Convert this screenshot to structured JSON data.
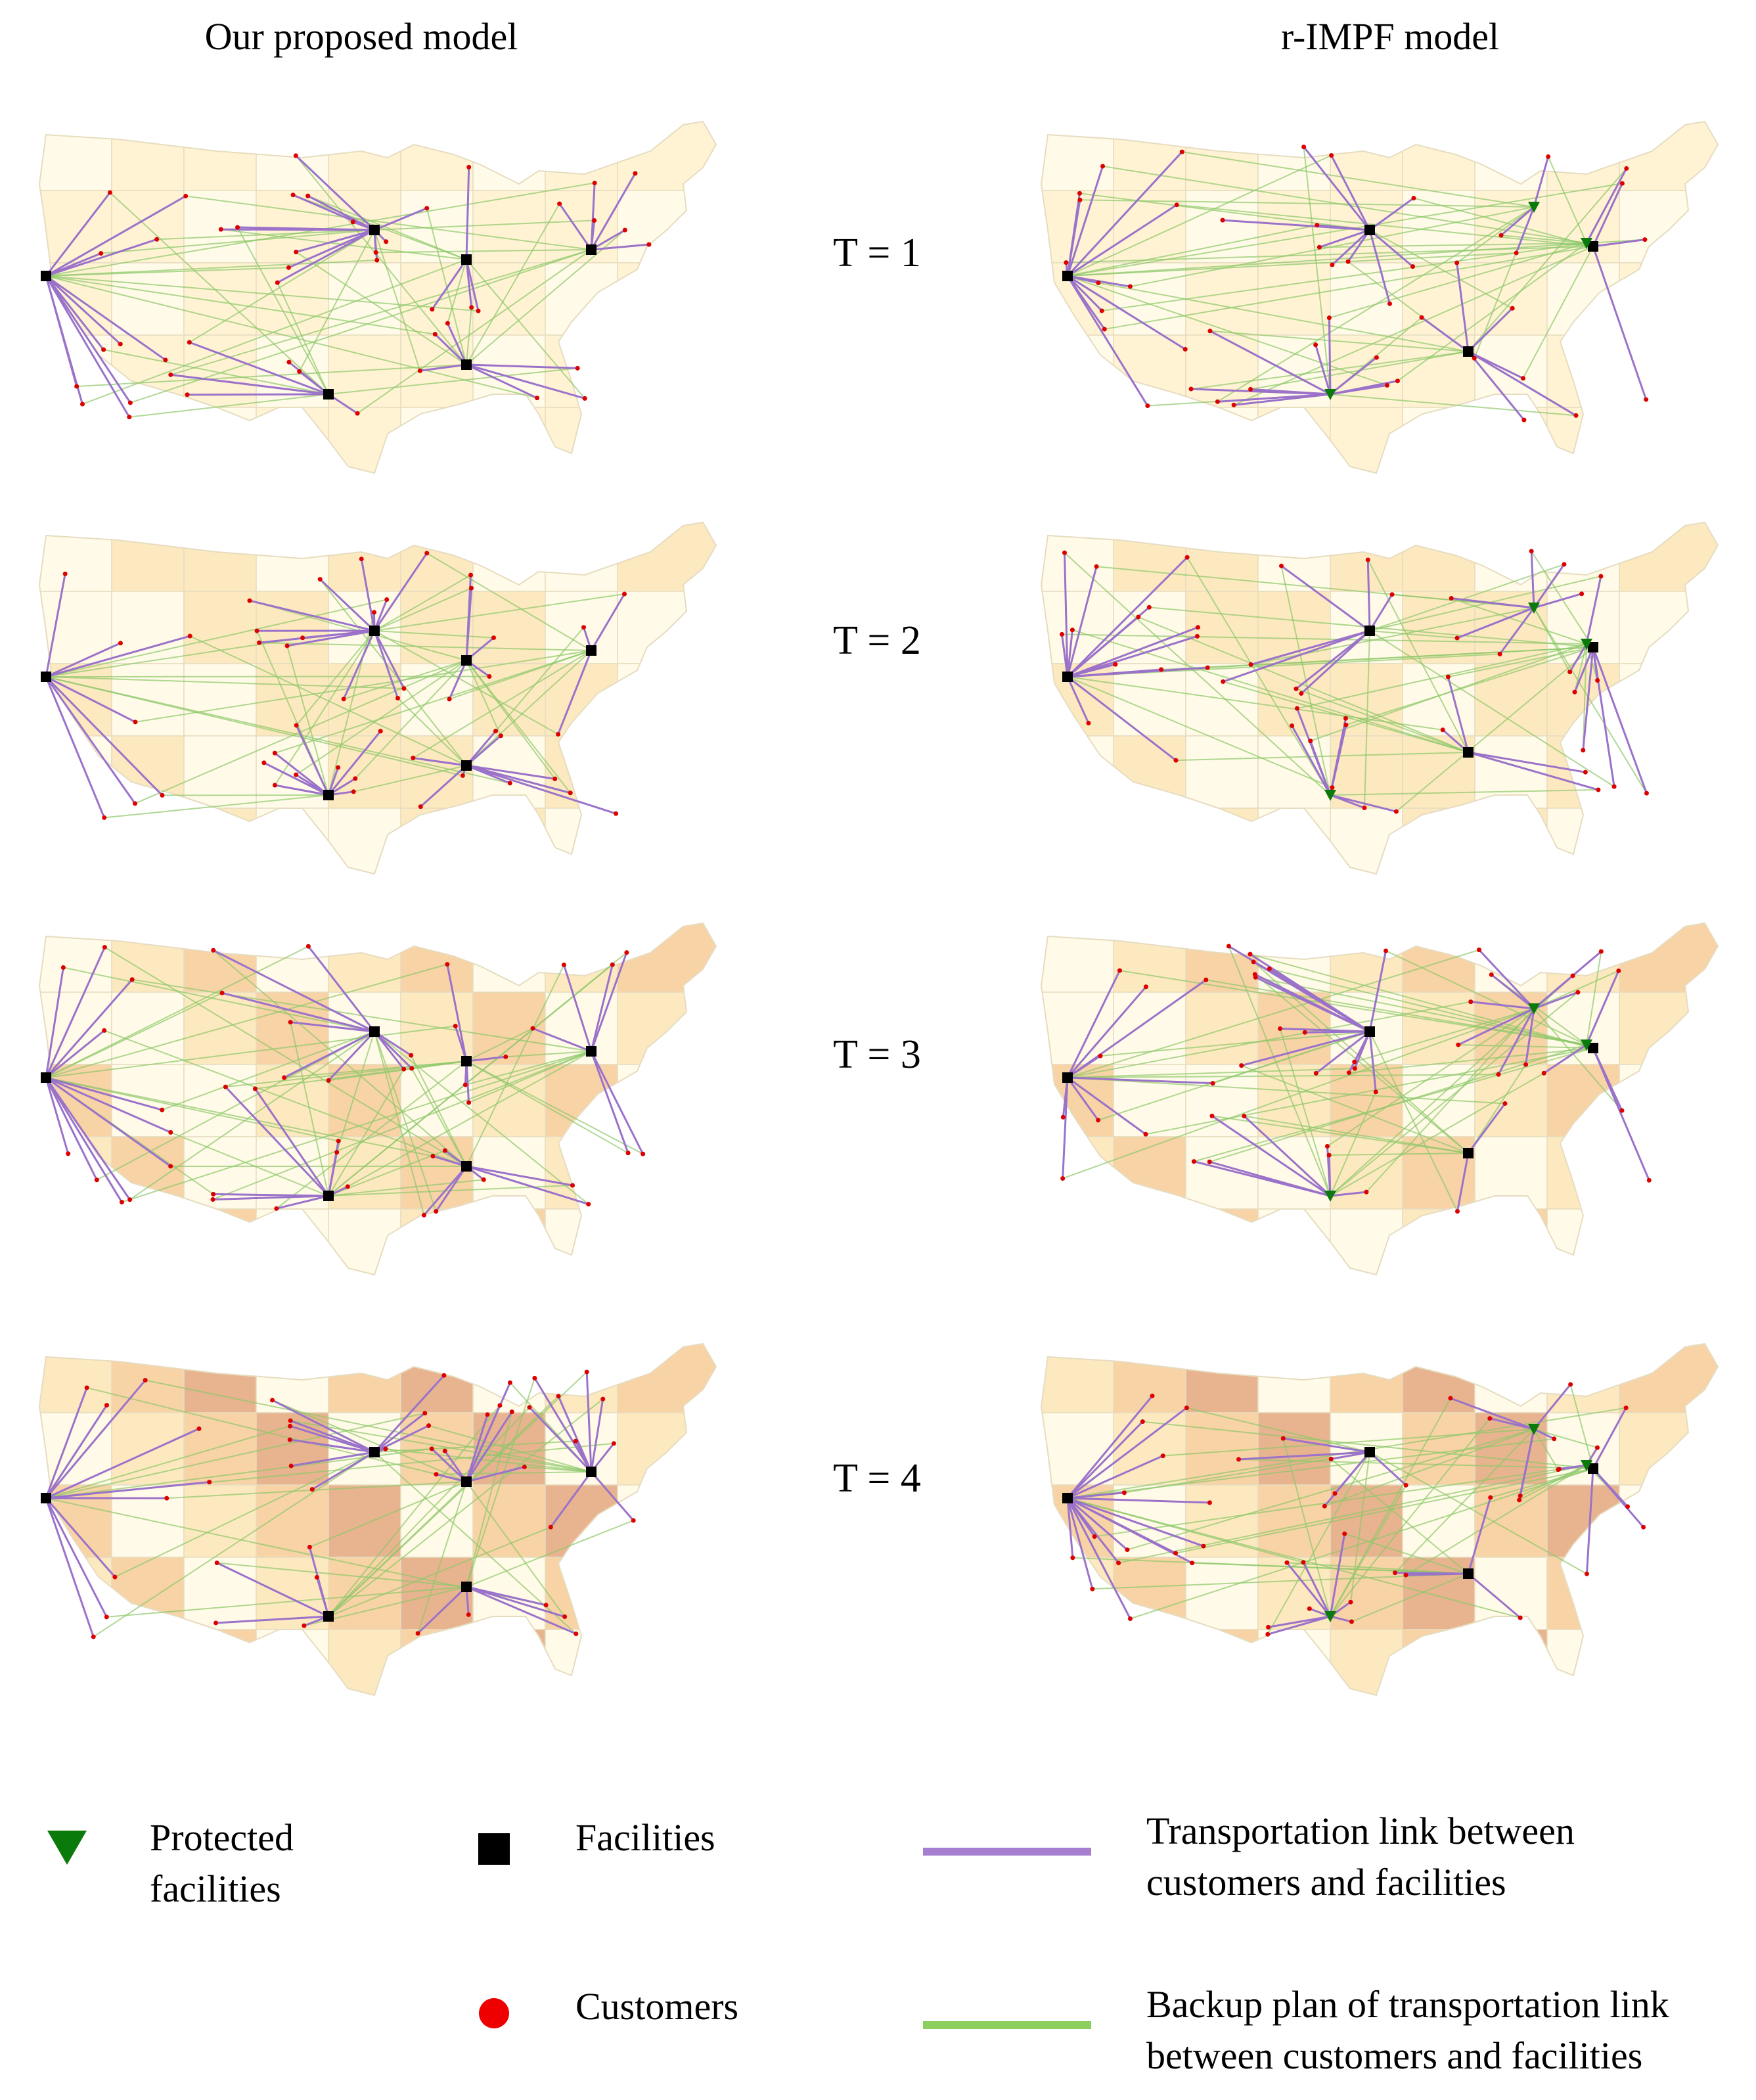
{
  "titles": {
    "left": "Our proposed model",
    "right": "r-IMPF model"
  },
  "periods": [
    {
      "label": "T = 1"
    },
    {
      "label": "T = 2"
    },
    {
      "label": "T = 3"
    },
    {
      "label": "T = 4"
    }
  ],
  "legend": {
    "protected": "Protected facilities",
    "facilities": "Facilities",
    "customers": "Customers",
    "transport": "Transportation link between customers and facilities",
    "backup": "Backup plan of transportation link between customers and facilities"
  },
  "colors": {
    "land": "#fff6da",
    "border": "#e6dcc0",
    "risk_scale": [
      "#fffbe8",
      "#fde9c0",
      "#f8d3a6",
      "#e8b48f",
      "#b9998f"
    ],
    "transport_link": "#9b72c9",
    "backup_link": "#8dc86a",
    "protected_facility": "#0a7a0a",
    "facility": "#000000",
    "customer": "#dd0000"
  },
  "icons": {
    "protected": "triangle-down-icon",
    "facility": "square-icon",
    "customer": "circle-icon"
  }
}
